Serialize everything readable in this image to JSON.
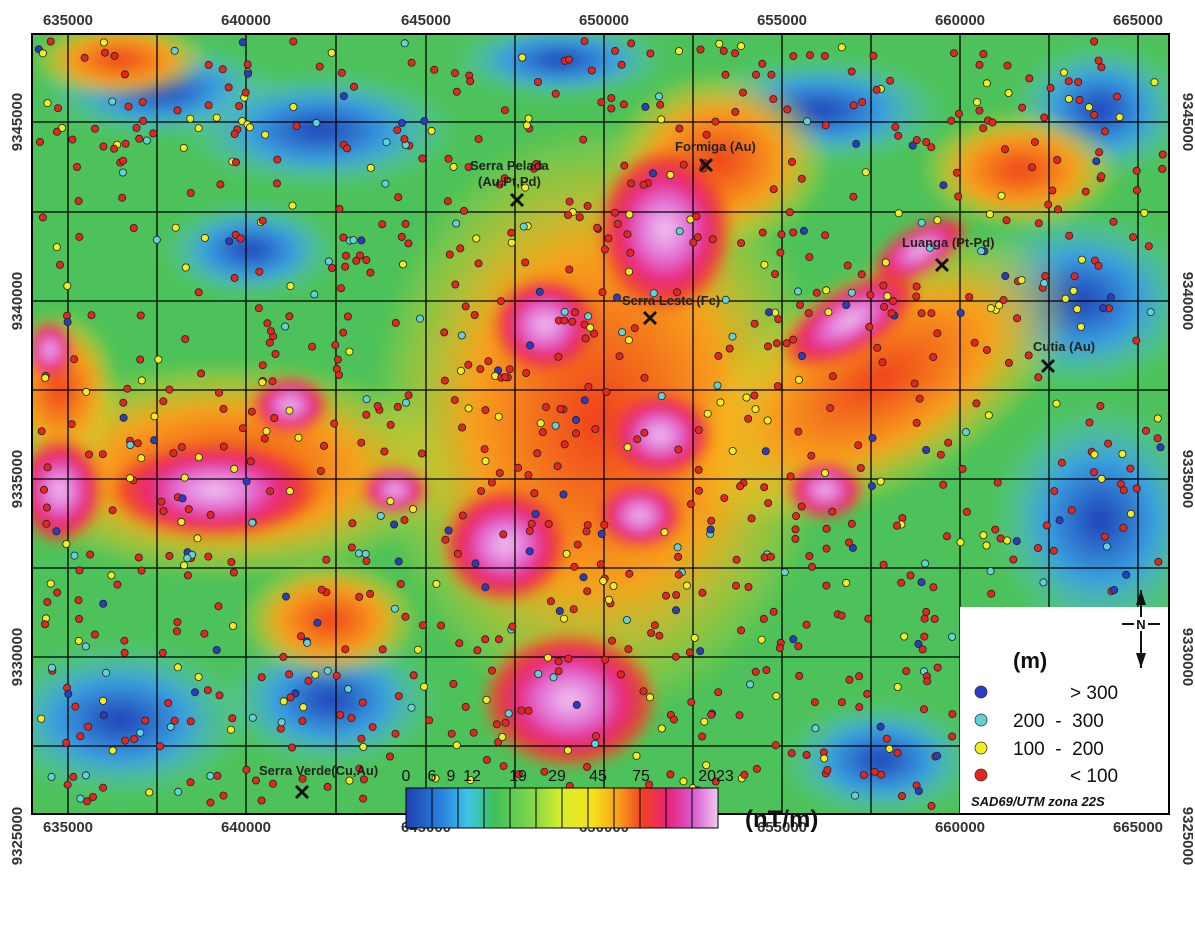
{
  "map": {
    "x_ticks": [
      "635000",
      "640000",
      "645000",
      "650000",
      "655000",
      "660000",
      "665000"
    ],
    "y_ticks": [
      "9345000",
      "9340000",
      "9335000",
      "9330000",
      "9325000"
    ],
    "places": [
      {
        "name": "Serra Pelada",
        "name2": "(Au,Pt,Pd)"
      },
      {
        "name": "Formiga (Au)"
      },
      {
        "name": "Luanga (Pt-Pd)"
      },
      {
        "name": "Serra Leste (Fe)"
      },
      {
        "name": "Cutia (Au)"
      },
      {
        "name": "Serra Verde(Cu,Au)"
      }
    ]
  },
  "legend": {
    "title": "(m)",
    "items": [
      {
        "label": "> 300",
        "color": "#2b3cc4"
      },
      {
        "label": "200  -  300",
        "color": "#5fd3d8"
      },
      {
        "label": "100  -  200",
        "color": "#f2ee1c"
      },
      {
        "label": "< 100",
        "color": "#e8241f"
      }
    ],
    "datum": "SAD69/UTM zona 22S",
    "north": "N"
  },
  "colorbar": {
    "labels": [
      "0",
      "6",
      "9",
      "12",
      "19",
      "29",
      "45",
      "75",
      "2023"
    ],
    "unit": "(nT/m)",
    "colors": [
      "#1d3fb0",
      "#2a86e0",
      "#3fc6e8",
      "#3fbf5c",
      "#7fd64a",
      "#d8ee2a",
      "#f7c61a",
      "#f07a18",
      "#e8241f",
      "#e8327a",
      "#d85ad0",
      "#f0c0f0"
    ]
  }
}
